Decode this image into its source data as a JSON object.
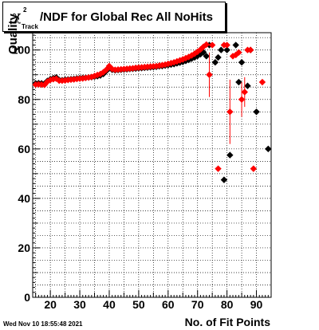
{
  "chart_data": {
    "type": "scatter",
    "title": {
      "symbol": "χ",
      "superscript": "2",
      "subscript": "Track",
      "text": "/NDF for Global Rec All NoHits"
    },
    "xlabel": "No. of Fit Points",
    "ylabel": "Quality",
    "xlim": [
      14,
      95
    ],
    "ylim": [
      0,
      107
    ],
    "x_ticks": [
      "20",
      "30",
      "40",
      "50",
      "60",
      "70",
      "80",
      "90"
    ],
    "y_ticks": [
      "0",
      "20",
      "40",
      "60",
      "80",
      "100"
    ],
    "grid": true,
    "legend": "none",
    "colors": {
      "series_black": "#000000",
      "series_red": "#ff0000"
    },
    "series": [
      {
        "color": "#000000",
        "points": [
          {
            "x": 15,
            "y": 86.5
          },
          {
            "x": 16,
            "y": 86.6
          },
          {
            "x": 17,
            "y": 86.5
          },
          {
            "x": 18,
            "y": 86.4
          },
          {
            "x": 19,
            "y": 87.5
          },
          {
            "x": 20,
            "y": 88.2
          },
          {
            "x": 21,
            "y": 88.6
          },
          {
            "x": 22,
            "y": 88.9
          },
          {
            "x": 23,
            "y": 87.9
          },
          {
            "x": 24,
            "y": 87.8
          },
          {
            "x": 25,
            "y": 88.0
          },
          {
            "x": 26,
            "y": 88.1
          },
          {
            "x": 27,
            "y": 88.2
          },
          {
            "x": 28,
            "y": 88.3
          },
          {
            "x": 29,
            "y": 88.5
          },
          {
            "x": 30,
            "y": 88.6
          },
          {
            "x": 31,
            "y": 88.7
          },
          {
            "x": 32,
            "y": 88.8
          },
          {
            "x": 33,
            "y": 88.9
          },
          {
            "x": 34,
            "y": 89.0
          },
          {
            "x": 35,
            "y": 89.2
          },
          {
            "x": 36,
            "y": 89.4
          },
          {
            "x": 37,
            "y": 89.7
          },
          {
            "x": 38,
            "y": 90.3
          },
          {
            "x": 39,
            "y": 91.5
          },
          {
            "x": 40,
            "y": 92.8
          },
          {
            "x": 41,
            "y": 92.0
          },
          {
            "x": 42,
            "y": 91.8
          },
          {
            "x": 43,
            "y": 91.9
          },
          {
            "x": 44,
            "y": 92.0
          },
          {
            "x": 45,
            "y": 92.1
          },
          {
            "x": 46,
            "y": 92.2
          },
          {
            "x": 47,
            "y": 92.3
          },
          {
            "x": 48,
            "y": 92.4
          },
          {
            "x": 49,
            "y": 92.5
          },
          {
            "x": 50,
            "y": 92.6
          },
          {
            "x": 51,
            "y": 92.7
          },
          {
            "x": 52,
            "y": 92.8
          },
          {
            "x": 53,
            "y": 92.9
          },
          {
            "x": 54,
            "y": 93.0
          },
          {
            "x": 55,
            "y": 93.1
          },
          {
            "x": 56,
            "y": 93.2
          },
          {
            "x": 57,
            "y": 93.4
          },
          {
            "x": 58,
            "y": 93.5
          },
          {
            "x": 59,
            "y": 93.7
          },
          {
            "x": 60,
            "y": 93.9
          },
          {
            "x": 61,
            "y": 94.1
          },
          {
            "x": 62,
            "y": 94.3
          },
          {
            "x": 63,
            "y": 94.6
          },
          {
            "x": 64,
            "y": 94.9
          },
          {
            "x": 65,
            "y": 95.2
          },
          {
            "x": 66,
            "y": 95.6
          },
          {
            "x": 67,
            "y": 96.0
          },
          {
            "x": 68,
            "y": 96.5
          },
          {
            "x": 69,
            "y": 97.0
          },
          {
            "x": 70,
            "y": 97.6
          },
          {
            "x": 71,
            "y": 98.3
          },
          {
            "x": 72,
            "y": 99.1
          },
          {
            "x": 73,
            "y": 97.5
          },
          {
            "x": 74,
            "y": 102
          },
          {
            "x": 76,
            "y": 95
          },
          {
            "x": 77,
            "y": 97
          },
          {
            "x": 78,
            "y": 100
          },
          {
            "x": 79,
            "y": 47.5
          },
          {
            "x": 80,
            "y": 100
          },
          {
            "x": 81,
            "y": 57.5
          },
          {
            "x": 83,
            "y": 102
          },
          {
            "x": 84,
            "y": 87
          },
          {
            "x": 85,
            "y": 95
          },
          {
            "x": 87,
            "y": 85.5
          },
          {
            "x": 88,
            "y": 100
          },
          {
            "x": 90,
            "y": 75
          },
          {
            "x": 94,
            "y": 60
          }
        ]
      },
      {
        "color": "#ff0000",
        "points": [
          {
            "x": 15,
            "y": 86.0
          },
          {
            "x": 16,
            "y": 86.1
          },
          {
            "x": 17,
            "y": 86.0
          },
          {
            "x": 18,
            "y": 85.9
          },
          {
            "x": 19,
            "y": 87.2
          },
          {
            "x": 20,
            "y": 87.9
          },
          {
            "x": 21,
            "y": 88.2
          },
          {
            "x": 22,
            "y": 88.4
          },
          {
            "x": 23,
            "y": 87.6
          },
          {
            "x": 24,
            "y": 87.6
          },
          {
            "x": 25,
            "y": 87.7
          },
          {
            "x": 26,
            "y": 87.9
          },
          {
            "x": 27,
            "y": 88.0
          },
          {
            "x": 28,
            "y": 88.1
          },
          {
            "x": 29,
            "y": 88.3
          },
          {
            "x": 30,
            "y": 88.4
          },
          {
            "x": 31,
            "y": 88.5
          },
          {
            "x": 32,
            "y": 88.7
          },
          {
            "x": 33,
            "y": 88.9
          },
          {
            "x": 34,
            "y": 89.1
          },
          {
            "x": 35,
            "y": 89.5
          },
          {
            "x": 36,
            "y": 89.9
          },
          {
            "x": 37,
            "y": 90.3
          },
          {
            "x": 38,
            "y": 91.0
          },
          {
            "x": 39,
            "y": 92.0
          },
          {
            "x": 40,
            "y": 93.5
          },
          {
            "x": 41,
            "y": 92.3
          },
          {
            "x": 42,
            "y": 92.0
          },
          {
            "x": 43,
            "y": 92.1
          },
          {
            "x": 44,
            "y": 92.2
          },
          {
            "x": 45,
            "y": 92.3
          },
          {
            "x": 46,
            "y": 92.4
          },
          {
            "x": 47,
            "y": 92.5
          },
          {
            "x": 48,
            "y": 92.6
          },
          {
            "x": 49,
            "y": 92.8
          },
          {
            "x": 50,
            "y": 92.9
          },
          {
            "x": 51,
            "y": 93.0
          },
          {
            "x": 52,
            "y": 93.1
          },
          {
            "x": 53,
            "y": 93.2
          },
          {
            "x": 54,
            "y": 93.3
          },
          {
            "x": 55,
            "y": 93.4
          },
          {
            "x": 56,
            "y": 93.5
          },
          {
            "x": 57,
            "y": 93.7
          },
          {
            "x": 58,
            "y": 93.9
          },
          {
            "x": 59,
            "y": 94.1
          },
          {
            "x": 60,
            "y": 94.4
          },
          {
            "x": 61,
            "y": 94.7
          },
          {
            "x": 62,
            "y": 95.0
          },
          {
            "x": 63,
            "y": 95.4
          },
          {
            "x": 64,
            "y": 95.8
          },
          {
            "x": 65,
            "y": 96.2
          },
          {
            "x": 66,
            "y": 96.7
          },
          {
            "x": 67,
            "y": 97.2
          },
          {
            "x": 68,
            "y": 97.8
          },
          {
            "x": 69,
            "y": 98.5
          },
          {
            "x": 70,
            "y": 99.3
          },
          {
            "x": 71,
            "y": 100.2
          },
          {
            "x": 72,
            "y": 101.3
          },
          {
            "x": 73,
            "y": 102.2
          },
          {
            "x": 74,
            "y": 90,
            "err": 9
          },
          {
            "x": 75,
            "y": 102
          },
          {
            "x": 77,
            "y": 52
          },
          {
            "x": 79,
            "y": 102
          },
          {
            "x": 80,
            "y": 102
          },
          {
            "x": 81,
            "y": 75,
            "err": 13
          },
          {
            "x": 82,
            "y": 97.5
          },
          {
            "x": 83,
            "y": 98
          },
          {
            "x": 84,
            "y": 99
          },
          {
            "x": 85,
            "y": 80,
            "err": 7
          },
          {
            "x": 86,
            "y": 83,
            "err": 6
          },
          {
            "x": 87,
            "y": 100
          },
          {
            "x": 88,
            "y": 100
          },
          {
            "x": 89,
            "y": 52
          },
          {
            "x": 92,
            "y": 87
          }
        ]
      }
    ]
  },
  "timestamp": "Wed Nov 10 18:55:48 2021"
}
